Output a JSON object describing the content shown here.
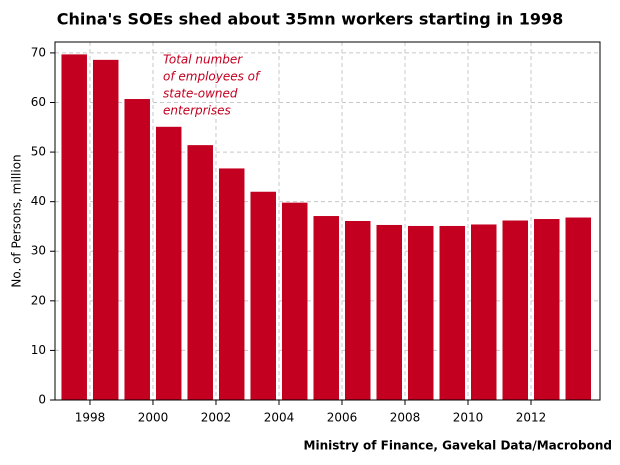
{
  "chart_data": {
    "type": "bar",
    "title": "China's SOEs shed about 35mn workers starting in 1998",
    "y_label": "No. of Persons, million",
    "source": "Ministry of Finance, Gavekal Data/Macrobond",
    "annotation": [
      "Total number",
      "of employees of",
      "state-owned",
      "enterprises"
    ],
    "x": [
      1997,
      1998,
      1999,
      2000,
      2001,
      2002,
      2003,
      2004,
      2005,
      2006,
      2007,
      2008,
      2009,
      2010,
      2011,
      2012,
      2013
    ],
    "values": [
      69.7,
      68.6,
      60.7,
      55.1,
      51.4,
      46.7,
      42.0,
      39.8,
      37.1,
      36.1,
      35.3,
      35.1,
      35.1,
      35.4,
      36.2,
      36.5,
      36.8
    ],
    "color": "#c30020",
    "xlim": [
      1996.89,
      2014.19
    ],
    "xticks": [
      1998,
      2000,
      2002,
      2004,
      2006,
      2008,
      2010,
      2012
    ],
    "ylim": [
      0,
      72.2
    ],
    "yticks": [
      0,
      10,
      20,
      30,
      40,
      50,
      60,
      70
    ],
    "grid": true
  }
}
